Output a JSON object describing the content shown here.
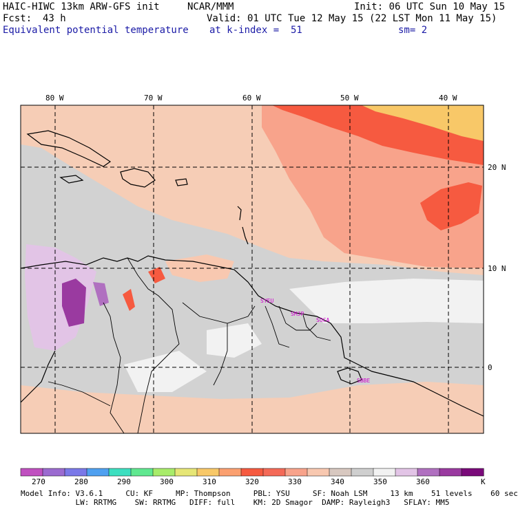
{
  "header": {
    "model_title": "HAIC-HIWC 13km ARW-GFS init",
    "org": "NCAR/MMM",
    "init": "Init: 06 UTC Sun 10 May 15",
    "fcst_label": "Fcst:",
    "fcst_hours": "43 h",
    "valid": "Valid: 01 UTC Tue 12 May 15 (22 LST Mon 11 May 15)",
    "field": "Equivalent potential temperature",
    "level": "at k-index =  51",
    "smoothing": "sm= 2"
  },
  "lon_labels": [
    "80 W",
    "70 W",
    "60 W",
    "50 W",
    "40 W"
  ],
  "lat_labels": [
    "20 N",
    "10 N",
    "0"
  ],
  "stations": [
    "SYEU",
    "SMJP",
    "SOCA",
    "SBBE"
  ],
  "colorbar": {
    "labels": [
      "270",
      "280",
      "290",
      "300",
      "310",
      "320",
      "330",
      "340",
      "350",
      "360",
      "K"
    ],
    "colors": [
      "#c050c0",
      "#9b6bd0",
      "#7a78e8",
      "#4fa0f0",
      "#3ddfc0",
      "#60e890",
      "#a8ec6a",
      "#e6e676",
      "#f8c868",
      "#fba070",
      "#f65a40",
      "#f46a58",
      "#f8a38b",
      "#f8c8b0",
      "#d8c8c0",
      "#cfcfcf",
      "#f2f2f2",
      "#e2c4e6",
      "#b070c0",
      "#9a3aa0",
      "#7a0a7a"
    ]
  },
  "footer": {
    "line1": "Model Info: V3.6.1     CU: KF     MP: Thompson     PBL: YSU     SF: Noah LSM     13 km    51 levels    60 sec",
    "line2": "            LW: RRTMG    SW: RRTMG   DIFF: full    KM: 2D Smagor  DAMP: Rayleigh3   SFLAY: MM5"
  }
}
